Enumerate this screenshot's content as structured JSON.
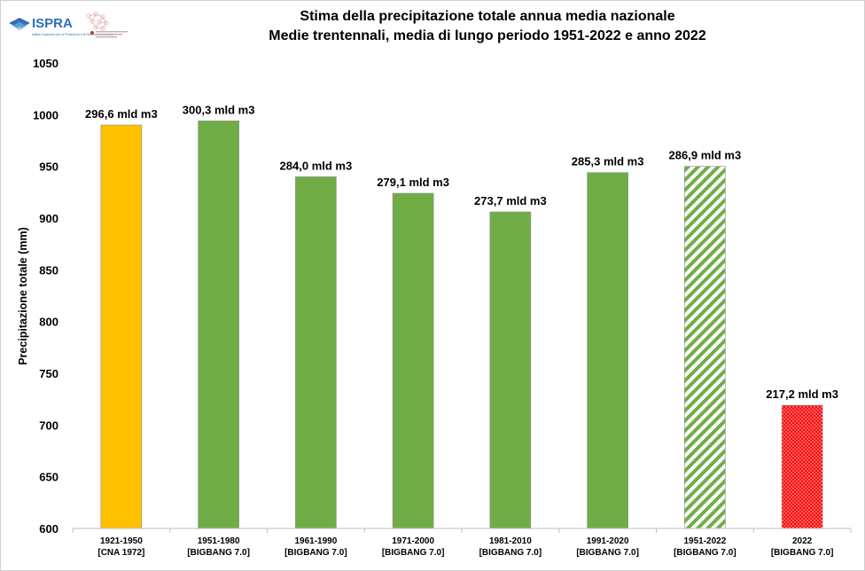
{
  "header": {
    "logo_text": "ISPRA",
    "logo_subtext": "Istituto Superiore per la Protezione e la Ricerca Ambientale",
    "title_line1": "Stima della precipitazione totale annua media nazionale",
    "title_line2": "Medie trentennali, media di lungo periodo 1951-2022 e anno 2022"
  },
  "chart_data": {
    "type": "bar",
    "title": "Stima della precipitazione totale annua media nazionale / Medie trentennali, media di lungo periodo 1951-2022 e anno 2022",
    "ylabel": "Precipitazione totale (mm)",
    "xlabel": "",
    "ylim": [
      600,
      1050
    ],
    "yticks": [
      600,
      650,
      700,
      750,
      800,
      850,
      900,
      950,
      1000,
      1050
    ],
    "grid": false,
    "categories": [
      [
        "1921-1950",
        "[CNA 1972]"
      ],
      [
        "1951-1980",
        "[BIGBANG 7.0]"
      ],
      [
        "1961-1990",
        "[BIGBANG 7.0]"
      ],
      [
        "1971-2000",
        "[BIGBANG 7.0]"
      ],
      [
        "1981-2010",
        "[BIGBANG 7.0]"
      ],
      [
        "1991-2020",
        "[BIGBANG 7.0]"
      ],
      [
        "1951-2022",
        "[BIGBANG 7.0]"
      ],
      [
        "2022",
        "[BIGBANG 7.0]"
      ]
    ],
    "values": [
      990,
      994,
      940,
      924,
      906,
      944,
      950,
      719
    ],
    "data_labels": [
      "296,6 mld m3",
      "300,3 mld m3",
      "284,0 mld m3",
      "279,1 mld m3",
      "273,7 mld m3",
      "285,3 mld m3",
      "286,9 mld m3",
      "217,2 mld m3"
    ],
    "bar_styles": [
      "solid-orange",
      "solid-green",
      "solid-green",
      "solid-green",
      "solid-green",
      "solid-green",
      "hatched-green",
      "dotted-red"
    ],
    "colors": {
      "orange": "#FFC000",
      "green": "#70AD47",
      "red": "#FF0000",
      "axis": "#bfbfbf"
    }
  }
}
